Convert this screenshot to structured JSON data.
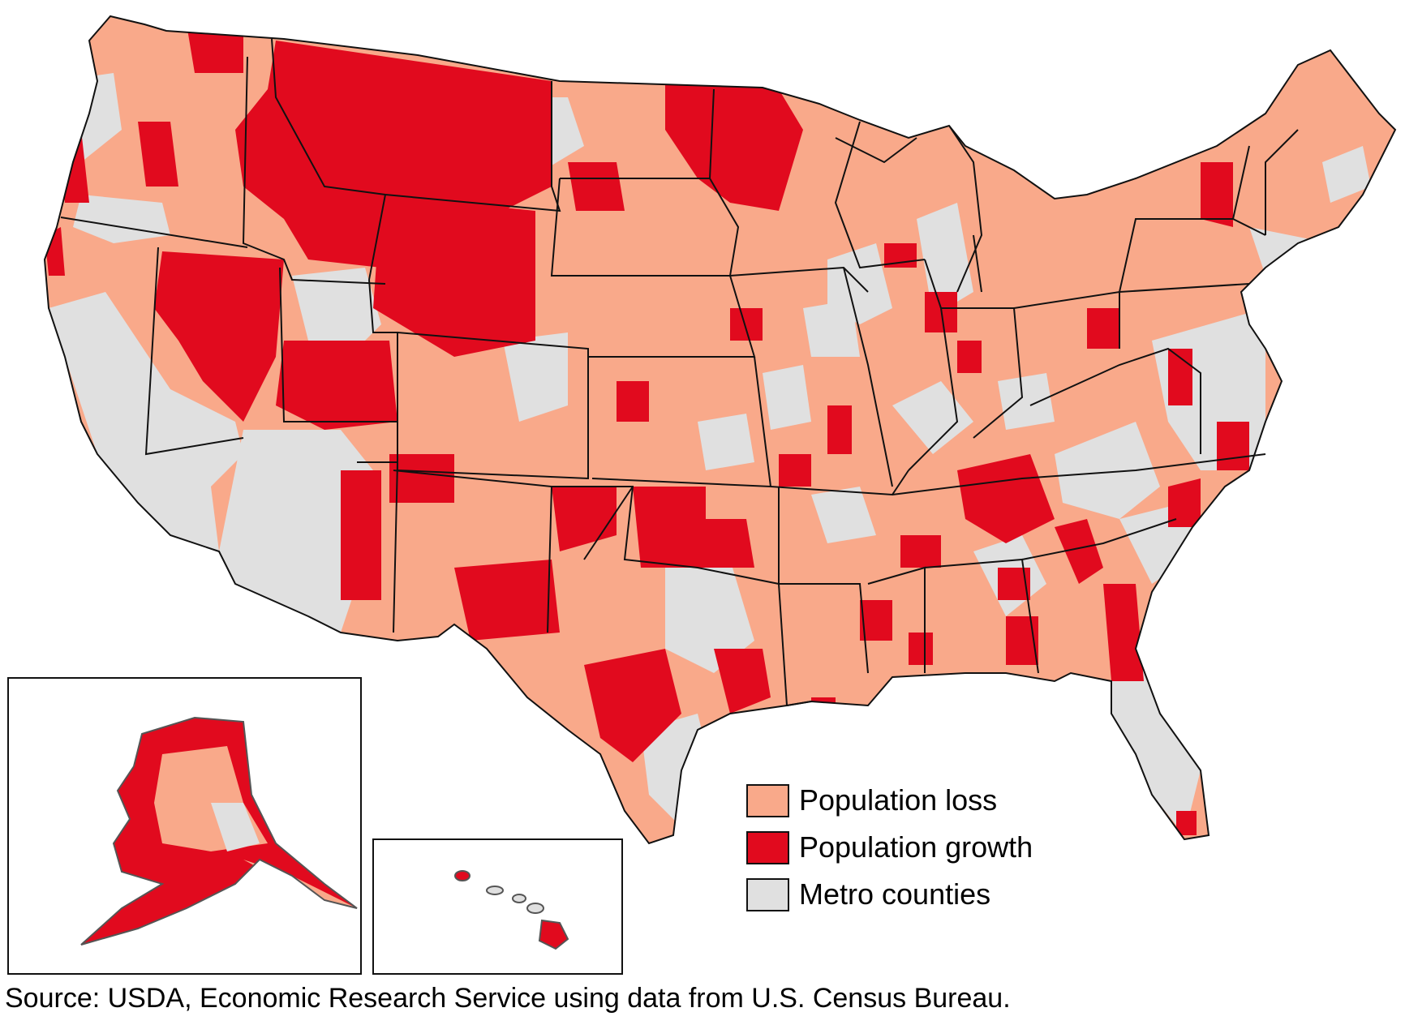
{
  "colors": {
    "loss": "#f9a98a",
    "growth": "#e10a1e",
    "metro": "#e0e0e0",
    "border": "#111111"
  },
  "legend": [
    {
      "label": "Population loss",
      "color": "#f9a98a"
    },
    {
      "label": "Population growth",
      "color": "#e10a1e"
    },
    {
      "label": "Metro counties",
      "color": "#e0e0e0"
    }
  ],
  "source": "Source: USDA, Economic Research Service using data from U.S. Census Bureau."
}
